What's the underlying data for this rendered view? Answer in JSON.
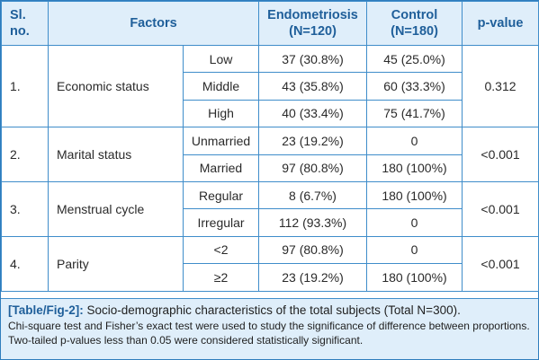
{
  "header": {
    "slno": "Sl. no.",
    "factors": "Factors",
    "endo": "Endometriosis",
    "endo_n": "(N=120)",
    "control": "Control",
    "control_n": "(N=180)",
    "pvalue": "p-value"
  },
  "rows": [
    {
      "no": "1.",
      "factor": "Economic status",
      "p": "0.312",
      "levels": [
        {
          "label": "Low",
          "endo": "37 (30.8%)",
          "control": "45 (25.0%)"
        },
        {
          "label": "Middle",
          "endo": "43 (35.8%)",
          "control": "60 (33.3%)"
        },
        {
          "label": "High",
          "endo": "40 (33.4%)",
          "control": "75 (41.7%)"
        }
      ]
    },
    {
      "no": "2.",
      "factor": "Marital status",
      "p": "<0.001",
      "levels": [
        {
          "label": "Unmarried",
          "endo": "23 (19.2%)",
          "control": "0"
        },
        {
          "label": "Married",
          "endo": "97 (80.8%)",
          "control": "180 (100%)"
        }
      ]
    },
    {
      "no": "3.",
      "factor": "Menstrual cycle",
      "p": "<0.001",
      "levels": [
        {
          "label": "Regular",
          "endo": "8 (6.7%)",
          "control": "180 (100%)"
        },
        {
          "label": "Irregular",
          "endo": "112 (93.3%)",
          "control": "0"
        }
      ]
    },
    {
      "no": "4.",
      "factor": "Parity",
      "p": "<0.001",
      "levels": [
        {
          "label": "<2",
          "endo": "97 (80.8%)",
          "control": "0"
        },
        {
          "label": "≥2",
          "endo": "23 (19.2%)",
          "control": "180 (100%)"
        }
      ]
    }
  ],
  "caption": {
    "tag": "[Table/Fig-2]:",
    "title": "Socio-demographic characteristics of the total subjects (Total N=300).",
    "note": "Chi-square test and Fisher’s exact test were used to study the significance of difference between proportions. Two-tailed p-values less than 0.05 were considered statistically significant."
  },
  "colors": {
    "border": "#3f8dca",
    "header_bg": "#dfeefa",
    "header_text": "#1f5f9a"
  }
}
